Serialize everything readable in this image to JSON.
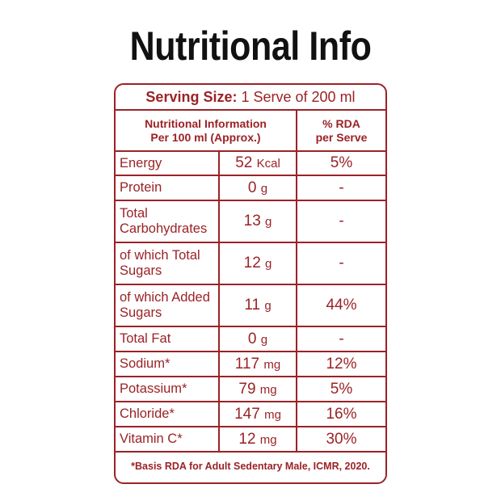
{
  "title": "Nutritional Info",
  "serving": {
    "label": "Serving Size:",
    "value": "1 Serve of 200 ml"
  },
  "header": {
    "col1_line1": "Nutritional Information",
    "col1_line2": "Per 100 ml (Approx.)",
    "col2_line1": "% RDA",
    "col2_line2": "per Serve"
  },
  "rows": [
    {
      "name": "Energy",
      "value": "52",
      "unit": "Kcal",
      "rda": "5%"
    },
    {
      "name": "Protein",
      "value": "0",
      "unit": "g",
      "rda": "-"
    },
    {
      "name": "Total Carbohydrates",
      "value": "13",
      "unit": "g",
      "rda": "-"
    },
    {
      "name": "of which Total Sugars",
      "value": "12",
      "unit": "g",
      "rda": "-"
    },
    {
      "name": "of which Added Sugars",
      "value": "11",
      "unit": "g",
      "rda": "44%"
    },
    {
      "name": "Total Fat",
      "value": "0",
      "unit": "g",
      "rda": "-"
    },
    {
      "name": "Sodium*",
      "value": "117",
      "unit": "mg",
      "rda": "12%"
    },
    {
      "name": "Potassium*",
      "value": "79",
      "unit": "mg",
      "rda": "5%"
    },
    {
      "name": "Chloride*",
      "value": "147",
      "unit": "mg",
      "rda": "16%"
    },
    {
      "name": "Vitamin C*",
      "value": "12",
      "unit": "mg",
      "rda": "30%"
    }
  ],
  "footnote": "*Basis RDA for Adult Sedentary Male, ICMR, 2020.",
  "colors": {
    "accent": "#9b2226",
    "title": "#111111"
  }
}
